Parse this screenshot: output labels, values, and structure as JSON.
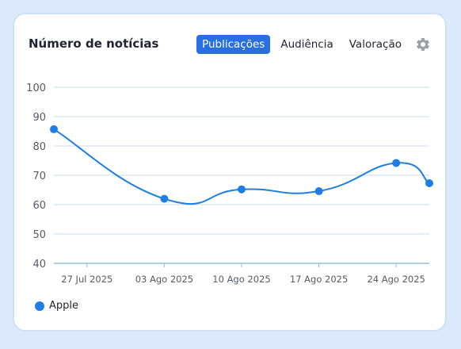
{
  "header": {
    "title": "Número de notícias",
    "tabs": [
      {
        "label": "Publicações",
        "active": true
      },
      {
        "label": "Audiência",
        "active": false
      },
      {
        "label": "Valoração",
        "active": false
      }
    ],
    "settings_icon": "gear-icon"
  },
  "colors": {
    "accent": "#2a6fe0",
    "series": "#1e7ee8",
    "grid": "#c9dcf3",
    "axis": "#8fc0e6"
  },
  "chart_data": {
    "type": "line",
    "title": "",
    "xlabel": "",
    "ylabel": "",
    "ylim": [
      40,
      100
    ],
    "yticks": [
      40,
      50,
      60,
      70,
      80,
      90,
      100
    ],
    "xticks": [
      "27 Jul 2025",
      "03 Ago 2025",
      "10 Ago 2025",
      "17 Ago 2025",
      "24 Ago 2025"
    ],
    "grid": true,
    "legend": "bottom-left",
    "series": [
      {
        "name": "Apple",
        "points": [
          {
            "x": "2025-07-24",
            "y": 85.7
          },
          {
            "x": "2025-08-03",
            "y": 62.0
          },
          {
            "x": "2025-08-10",
            "y": 65.2
          },
          {
            "x": "2025-08-17",
            "y": 64.6
          },
          {
            "x": "2025-08-24",
            "y": 74.2
          },
          {
            "x": "2025-08-27",
            "y": 67.3
          }
        ]
      }
    ]
  }
}
